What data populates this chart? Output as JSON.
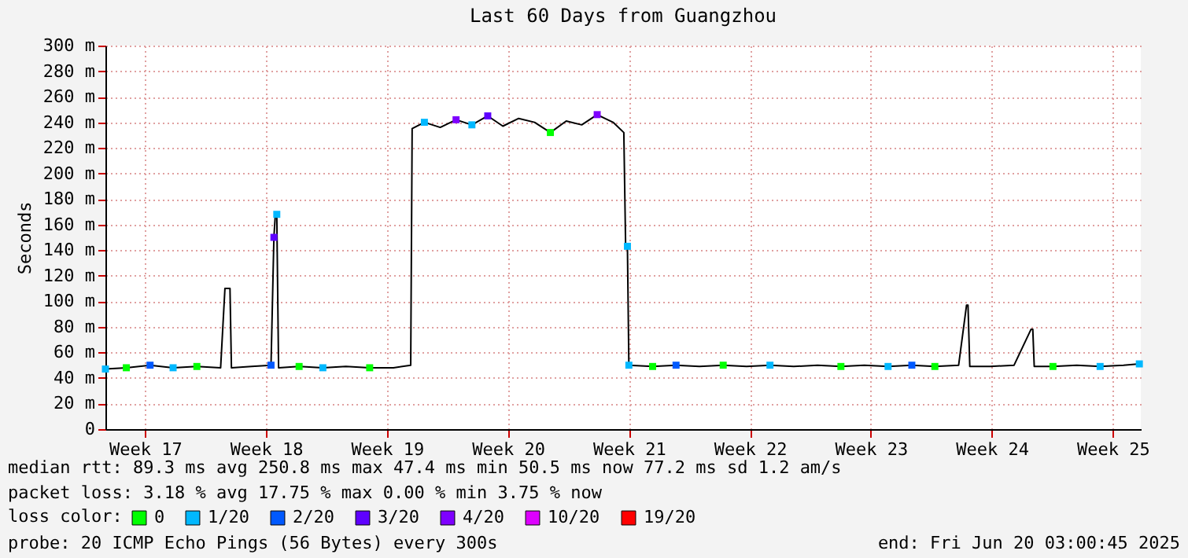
{
  "chart_data": {
    "type": "line",
    "title": "Last 60 Days from Guangzhou",
    "ylabel": "Seconds",
    "xlim": [
      "2025-04-21T05:00",
      "2025-06-20T03:00"
    ],
    "xticks": [
      {
        "value": "2025-04-23T12:00",
        "label": "Week 17"
      },
      {
        "value": "2025-04-30T12:00",
        "label": "Week 18"
      },
      {
        "value": "2025-05-07T12:00",
        "label": "Week 19"
      },
      {
        "value": "2025-05-14T12:00",
        "label": "Week 20"
      },
      {
        "value": "2025-05-21T12:00",
        "label": "Week 21"
      },
      {
        "value": "2025-05-28T12:00",
        "label": "Week 22"
      },
      {
        "value": "2025-06-04T12:00",
        "label": "Week 23"
      },
      {
        "value": "2025-06-11T12:00",
        "label": "Week 24"
      },
      {
        "value": "2025-06-18T12:00",
        "label": "Week 25"
      }
    ],
    "ylim": [
      0,
      300
    ],
    "yticks": [
      0,
      {
        "value": 20,
        "label": "20 m"
      },
      {
        "value": 40,
        "label": "40 m"
      },
      {
        "value": 60,
        "label": "60 m"
      },
      {
        "value": 80,
        "label": "80 m"
      },
      {
        "value": 100,
        "label": "100 m"
      },
      {
        "value": 120,
        "label": "120 m"
      },
      {
        "value": 140,
        "label": "140 m"
      },
      {
        "value": 160,
        "label": "160 m"
      },
      {
        "value": 180,
        "label": "180 m"
      },
      {
        "value": 200,
        "label": "200 m"
      },
      {
        "value": 220,
        "label": "220 m"
      },
      {
        "value": 240,
        "label": "240 m"
      },
      {
        "value": 260,
        "label": "260 m"
      },
      {
        "value": 280,
        "label": "280 m"
      },
      {
        "value": 300,
        "label": "300 m"
      }
    ],
    "grid": true,
    "legend": "bottom left",
    "legend_title": "loss color:",
    "series": [
      {
        "color": "#000000",
        "marker": "none",
        "x": [
          "2025-04-21T05:00",
          "2025-04-22T10:00",
          "2025-04-23T19:00",
          "2025-04-25T03:00",
          "2025-04-26T12:00",
          "2025-04-27T21:00",
          "2025-04-28T03:00",
          "2025-04-28T10:00",
          "2025-04-28T12:00",
          "2025-04-29T16:00",
          "2025-04-30T19:00",
          "2025-04-30T23:00",
          "2025-05-01T01:00",
          "2025-05-01T03:00",
          "2025-05-01T05:30",
          "2025-05-02T10:00",
          "2025-05-03T19:00",
          "2025-05-05T03:00",
          "2025-05-06T12:00",
          "2025-05-07T21:00",
          "2025-05-08T21:00",
          "2025-05-08T23:00",
          "2025-05-09T16:00",
          "2025-05-10T14:00",
          "2025-05-11T12:00",
          "2025-05-12T10:00",
          "2025-05-13T08:00",
          "2025-05-14T05:00",
          "2025-05-15T03:00",
          "2025-05-16T01:00",
          "2025-05-16T23:00",
          "2025-05-17T21:00",
          "2025-05-18T18:30",
          "2025-05-19T16:00",
          "2025-05-20T14:00",
          "2025-05-21T05:00",
          "2025-05-21T07:30",
          "2025-05-21T10:00",
          "2025-05-21T12:00",
          "2025-05-22T21:00",
          "2025-05-24T05:30",
          "2025-05-25T14:00",
          "2025-05-26T23:00",
          "2025-05-28T07:30",
          "2025-05-29T16:00",
          "2025-05-31T01:00",
          "2025-06-01T10:00",
          "2025-06-02T18:30",
          "2025-06-04T03:00",
          "2025-06-05T12:00",
          "2025-06-06T21:00",
          "2025-06-08T05:00",
          "2025-06-09T14:00",
          "2025-06-10T01:00",
          "2025-06-10T03:00",
          "2025-06-10T05:30",
          "2025-06-11T10:00",
          "2025-06-12T19:00",
          "2025-06-13T18:30",
          "2025-06-13T21:00",
          "2025-06-13T23:00",
          "2025-06-15T01:00",
          "2025-06-16T10:00",
          "2025-06-17T18:30",
          "2025-06-19T03:00",
          "2025-06-20T01:00"
        ],
        "values": [
          47,
          48,
          50,
          48,
          49,
          48,
          110,
          110,
          48,
          49,
          50,
          150,
          168,
          168,
          48,
          49,
          48,
          49,
          48,
          48,
          50,
          235,
          240,
          236,
          242,
          238,
          245,
          237,
          243,
          240,
          232,
          241,
          238,
          246,
          240,
          232,
          143,
          143,
          50,
          49,
          50,
          49,
          50,
          49,
          50,
          49,
          50,
          49,
          50,
          49,
          50,
          49,
          50,
          97,
          97,
          49,
          49,
          50,
          78,
          78,
          49,
          49,
          50,
          49,
          50,
          51
        ]
      },
      {
        "type": "scatter",
        "name": "0",
        "color": "#00ff00",
        "marker": "square",
        "x": [
          "2025-04-22T10:00",
          "2025-04-26T12:00",
          "2025-05-02T10:00",
          "2025-05-06T12:00",
          "2025-05-16T23:00",
          "2025-05-22T21:00",
          "2025-05-26T23:00",
          "2025-06-02T18:30",
          "2025-06-08T05:00",
          "2025-06-15T01:00"
        ],
        "values": [
          48,
          49,
          49,
          48,
          232,
          49,
          50,
          49,
          49,
          49
        ]
      },
      {
        "type": "scatter",
        "name": "1/20",
        "color": "#00b8ff",
        "marker": "square",
        "x": [
          "2025-04-21T05:00",
          "2025-04-25T03:00",
          "2025-05-01T03:00",
          "2025-05-03T19:00",
          "2025-05-09T16:00",
          "2025-05-12T10:00",
          "2025-05-21T10:00",
          "2025-05-21T12:00",
          "2025-05-29T16:00",
          "2025-06-05T12:00",
          "2025-06-17T18:30",
          "2025-06-20T01:00"
        ],
        "values": [
          47,
          48,
          168,
          48,
          240,
          238,
          143,
          50,
          50,
          49,
          49,
          51
        ]
      },
      {
        "type": "scatter",
        "name": "2/20",
        "color": "#0059ff",
        "marker": "square",
        "x": [
          "2025-04-23T19:00",
          "2025-04-30T19:00",
          "2025-05-24T05:30",
          "2025-06-06T21:00"
        ],
        "values": [
          50,
          50,
          50,
          50
        ]
      },
      {
        "type": "scatter",
        "name": "3/20",
        "color": "#5e00ff",
        "marker": "square",
        "x": [
          "2025-04-30T23:00",
          "2025-05-13T08:00"
        ],
        "values": [
          150,
          245
        ]
      },
      {
        "type": "scatter",
        "name": "4/20",
        "color": "#7e00ff",
        "marker": "square",
        "x": [
          "2025-05-11T12:00",
          "2025-05-19T16:00"
        ],
        "values": [
          242,
          246
        ]
      },
      {
        "type": "scatter",
        "name": "10/20",
        "color": "#dd00ff",
        "marker": "square"
      },
      {
        "type": "scatter",
        "name": "19/20",
        "color": "#ff0000",
        "marker": "square"
      }
    ],
    "annotations": [
      "median rtt:  89.3 ms avg  250.8 ms max  47.4 ms min  50.5 ms now  77.2 ms sd  1.2   am/s",
      "packet loss: 3.18 % avg  17.75 % max  0.00 % min  3.75 % now",
      "probe:       20 ICMP Echo Pings (56 Bytes) every 300s",
      "end: Fri Jun 20 03:00:45 2025"
    ]
  }
}
